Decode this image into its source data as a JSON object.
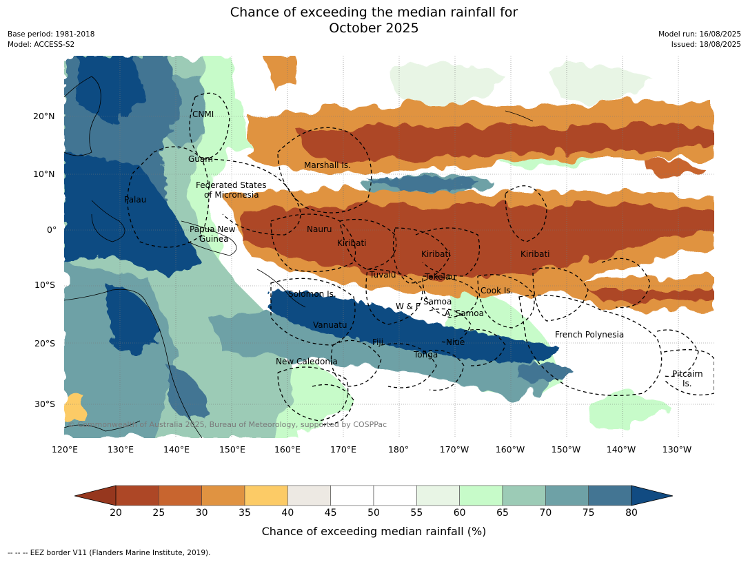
{
  "title_line1": "Chance of exceeding the median rainfall for",
  "title_line2": "October 2025",
  "meta": {
    "base_period": "Base period: 1981-2018",
    "model": "Model: ACCESS-S2",
    "model_run": "Model run: 16/08/2025",
    "issued": "Issued: 18/08/2025"
  },
  "copyright": "© Commonwealth of Australia 2025, Bureau of Meteorology, supported by COSPPac",
  "latitude_labels": [
    "20°N",
    "10°N",
    "0°",
    "10°S",
    "20°S",
    "30°S"
  ],
  "longitude_labels": [
    "120°E",
    "130°E",
    "140°E",
    "150°E",
    "160°E",
    "170°E",
    "180°",
    "170°W",
    "160°W",
    "150°W",
    "140°W",
    "130°W"
  ],
  "region_labels": {
    "cnmi": "CNMI",
    "guam": "Guam",
    "marshall": "Marshall Is.",
    "fsm1": "Federated States",
    "fsm2": "of Micronesia",
    "palau": "Palau",
    "png1": "Papua New",
    "png2": "Guinea",
    "nauru": "Nauru",
    "kiribati_w": "Kiribati",
    "kiribati_c": "Kiribati",
    "kiribati_e": "Kiribati",
    "tuvalu": "Tuvalu",
    "tokelau": "Tokelau",
    "cook": "Cook Is.",
    "solomon": "Solomon Is.",
    "wf": "W & F",
    "samoa": "Samoa",
    "asamoa": "A. Samoa",
    "vanuatu": "Vanuatu",
    "fiji": "Fiji",
    "niue": "Niue",
    "tonga": "Tonga",
    "newcal": "New Caledonia",
    "fp": "French Polynesia",
    "pitcairn1": "Pitcairn",
    "pitcairn2": "Is."
  },
  "colorbar": {
    "ticks": [
      "20",
      "25",
      "30",
      "35",
      "40",
      "45",
      "50",
      "55",
      "60",
      "65",
      "70",
      "75",
      "80"
    ],
    "under_color": "#96371e",
    "over_color": "#114b82",
    "colors": [
      "#ad4726",
      "#c8652f",
      "#e09341",
      "#fccb66",
      "#ede9e3",
      "#ffffff",
      "#ffffff",
      "#e8f5e5",
      "#c7fbc9",
      "#9ccbb6",
      "#6ea1a6",
      "#437593"
    ],
    "label": "Chance of exceeding median rainfall (%)"
  },
  "legend_note": "--  --  -- EEZ border V11 (Flanders Marine Institute, 2019)."
}
